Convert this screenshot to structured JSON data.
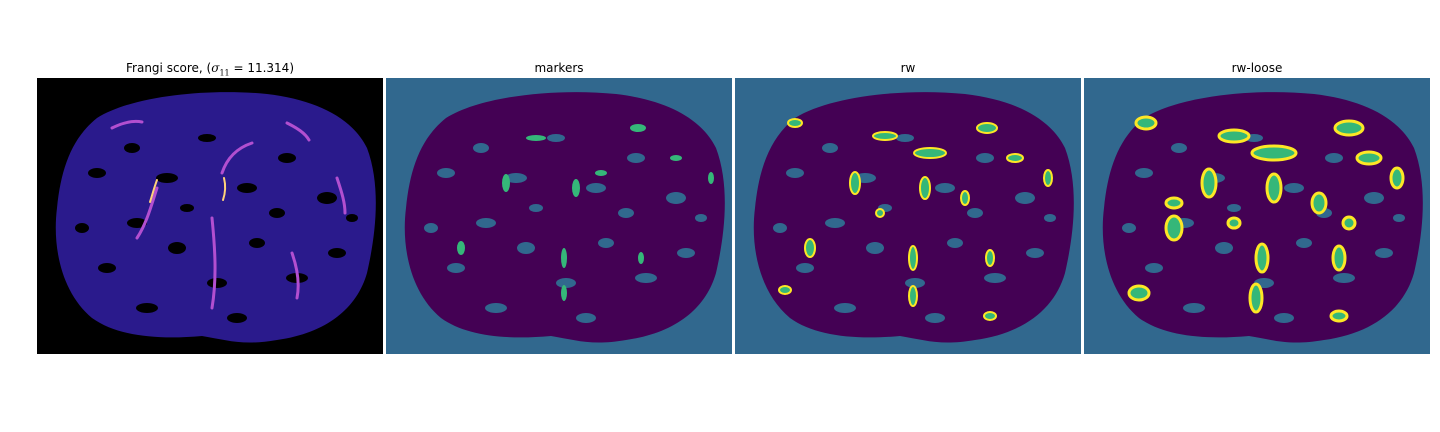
{
  "panels": [
    {
      "title_prefix": "Frangi score, (",
      "title_symbol": "σ",
      "title_subscript": "11",
      "title_suffix": " = 11.314)",
      "colormap": "magma-like",
      "colors": {
        "background": "#000000",
        "tissue": "#2a1a8c",
        "vessel": "#b24fd0",
        "peak": "#ffd27a"
      }
    },
    {
      "title": "markers",
      "colors": {
        "background": "#31688e",
        "tissue": "#440154",
        "marker": "#35b779"
      }
    },
    {
      "title": "rw",
      "colors": {
        "background": "#31688e",
        "tissue": "#440154",
        "vessel": "#35b779",
        "outline": "#fde725"
      }
    },
    {
      "title": "rw-loose",
      "colors": {
        "background": "#31688e",
        "tissue": "#440154",
        "vessel": "#35b779",
        "outline": "#fde725"
      }
    }
  ]
}
